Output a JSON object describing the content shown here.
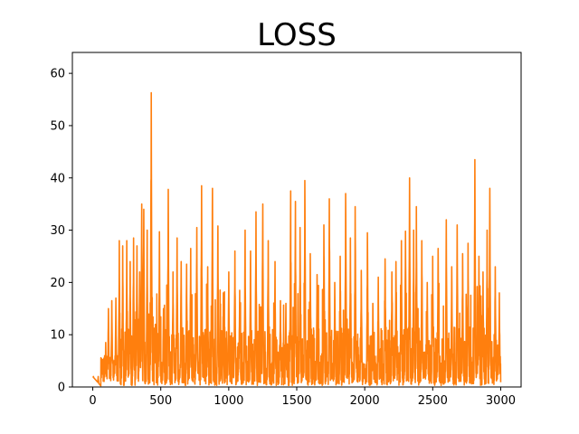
{
  "chart_data": {
    "type": "line",
    "title": "LOSS",
    "xlabel": "",
    "ylabel": "",
    "xlim": [
      -150,
      3150
    ],
    "ylim": [
      0,
      64
    ],
    "x_ticks": [
      0,
      500,
      1000,
      1500,
      2000,
      2500,
      3000
    ],
    "y_ticks": [
      0,
      10,
      20,
      30,
      40,
      50,
      60
    ],
    "x_tick_labels": [
      "0",
      "500",
      "1000",
      "1500",
      "2000",
      "2500",
      "3000"
    ],
    "y_tick_labels": [
      "0",
      "10",
      "20",
      "30",
      "40",
      "50",
      "60"
    ],
    "grid": false,
    "series": [
      {
        "name": "loss",
        "color": "#ff7f0e",
        "x_start": 0,
        "x_end": 3000,
        "points": 3000,
        "peaks": [
          [
            5,
            2
          ],
          [
            40,
            2
          ],
          [
            70,
            4.5
          ],
          [
            95,
            8.5
          ],
          [
            115,
            15
          ],
          [
            140,
            16.5
          ],
          [
            170,
            17
          ],
          [
            195,
            28
          ],
          [
            220,
            27
          ],
          [
            250,
            28
          ],
          [
            275,
            24
          ],
          [
            300,
            28.5
          ],
          [
            325,
            27
          ],
          [
            345,
            22
          ],
          [
            360,
            35
          ],
          [
            375,
            34
          ],
          [
            400,
            30
          ],
          [
            430,
            56.3
          ],
          [
            460,
            12
          ],
          [
            490,
            29.7
          ],
          [
            520,
            15
          ],
          [
            555,
            37.8
          ],
          [
            590,
            22
          ],
          [
            620,
            28.5
          ],
          [
            650,
            24
          ],
          [
            690,
            23.5
          ],
          [
            720,
            26.5
          ],
          [
            765,
            30.5
          ],
          [
            800,
            38.5
          ],
          [
            845,
            23
          ],
          [
            880,
            38
          ],
          [
            920,
            30.8
          ],
          [
            960,
            18
          ],
          [
            1000,
            22
          ],
          [
            1045,
            26
          ],
          [
            1080,
            18.5
          ],
          [
            1120,
            30
          ],
          [
            1160,
            26
          ],
          [
            1200,
            33.5
          ],
          [
            1250,
            35
          ],
          [
            1290,
            28
          ],
          [
            1340,
            24
          ],
          [
            1380,
            16.5
          ],
          [
            1420,
            16
          ],
          [
            1455,
            37.5
          ],
          [
            1490,
            35.5
          ],
          [
            1525,
            30.5
          ],
          [
            1560,
            39.5
          ],
          [
            1600,
            25.5
          ],
          [
            1650,
            21.5
          ],
          [
            1700,
            31
          ],
          [
            1740,
            36
          ],
          [
            1780,
            20
          ],
          [
            1820,
            25
          ],
          [
            1860,
            37
          ],
          [
            1895,
            28.5
          ],
          [
            1930,
            34.5
          ],
          [
            1975,
            22.3
          ],
          [
            2020,
            29.5
          ],
          [
            2060,
            16
          ],
          [
            2100,
            21
          ],
          [
            2150,
            24.5
          ],
          [
            2200,
            22
          ],
          [
            2230,
            24
          ],
          [
            2270,
            28
          ],
          [
            2300,
            29.8
          ],
          [
            2330,
            40
          ],
          [
            2360,
            30
          ],
          [
            2380,
            34.5
          ],
          [
            2420,
            28
          ],
          [
            2460,
            20
          ],
          [
            2500,
            25
          ],
          [
            2540,
            26.5
          ],
          [
            2600,
            32
          ],
          [
            2640,
            23
          ],
          [
            2680,
            31
          ],
          [
            2720,
            25.5
          ],
          [
            2760,
            27.5
          ],
          [
            2810,
            43.5
          ],
          [
            2840,
            25
          ],
          [
            2870,
            22
          ],
          [
            2900,
            30
          ],
          [
            2920,
            38
          ],
          [
            2960,
            23
          ],
          [
            2990,
            18
          ]
        ]
      }
    ]
  }
}
